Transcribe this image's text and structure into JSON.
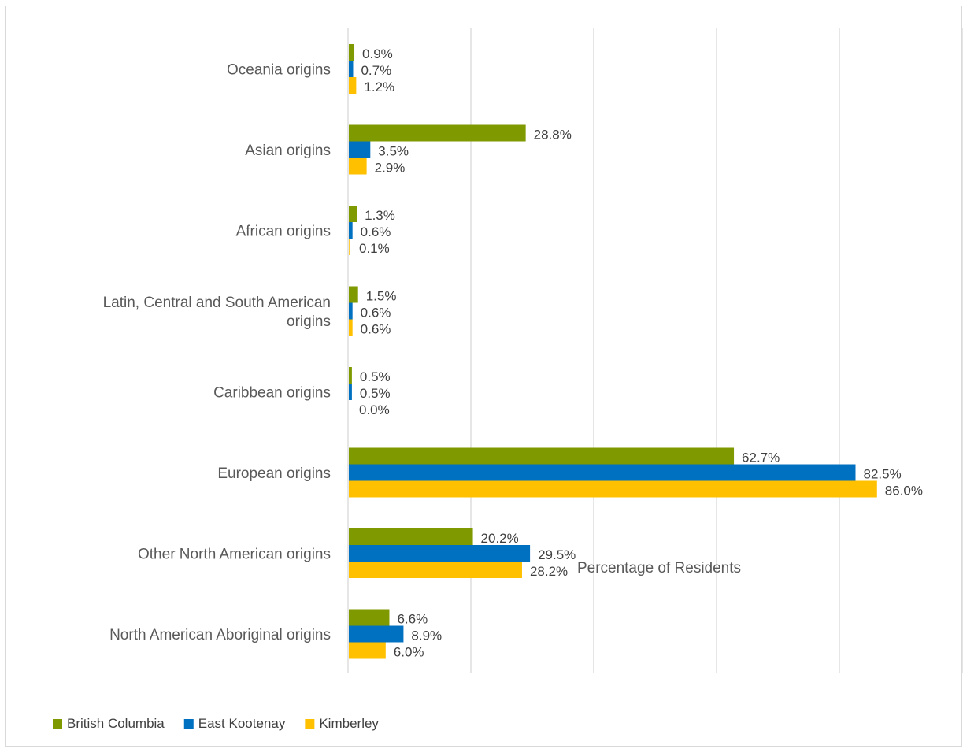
{
  "chart_data": {
    "type": "bar",
    "orientation": "horizontal",
    "title": "",
    "xlabel": "Percentage of Residents",
    "ylabel": "",
    "xlim": [
      0,
      100
    ],
    "grid": true,
    "legend_position": "bottom-left",
    "categories": [
      "Oceania origins",
      "Asian origins",
      "African origins",
      "Latin, Central and South American origins",
      "Caribbean origins",
      "European origins",
      "Other North American origins",
      "North American Aboriginal origins"
    ],
    "category_lines": [
      [
        "Oceania origins"
      ],
      [
        "Asian origins"
      ],
      [
        "African origins"
      ],
      [
        "Latin, Central and South American",
        "origins"
      ],
      [
        "Caribbean origins"
      ],
      [
        "European origins"
      ],
      [
        "Other North American origins"
      ],
      [
        "North American Aboriginal origins"
      ]
    ],
    "series": [
      {
        "name": "British Columbia",
        "color": "#7f9a00",
        "values": [
          0.9,
          28.8,
          1.3,
          1.5,
          0.5,
          62.7,
          20.2,
          6.6
        ],
        "labels": [
          "0.9%",
          "28.8%",
          "1.3%",
          "1.5%",
          "0.5%",
          "62.7%",
          "20.2%",
          "6.6%"
        ]
      },
      {
        "name": "East Kootenay",
        "color": "#0070c0",
        "values": [
          0.7,
          3.5,
          0.6,
          0.6,
          0.5,
          82.5,
          29.5,
          8.9
        ],
        "labels": [
          "0.7%",
          "3.5%",
          "0.6%",
          "0.6%",
          "0.5%",
          "82.5%",
          "29.5%",
          "8.9%"
        ]
      },
      {
        "name": "Kimberley",
        "color": "#ffc000",
        "values": [
          1.2,
          2.9,
          0.1,
          0.6,
          0.0,
          86.0,
          28.2,
          6.0
        ],
        "labels": [
          "1.2%",
          "2.9%",
          "0.1%",
          "0.6%",
          "0.0%",
          "86.0%",
          "28.2%",
          "6.0%"
        ]
      }
    ]
  }
}
